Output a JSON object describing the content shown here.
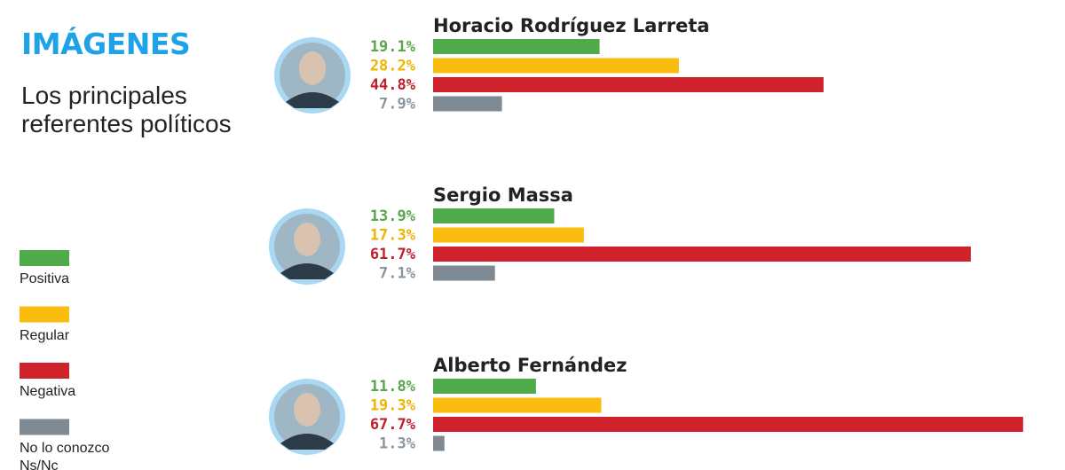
{
  "chart_data": {
    "type": "bar",
    "title": "IMÁGENES",
    "subtitle": "Los principales referentes políticos",
    "categories": [
      "Horacio Rodríguez Larreta",
      "Sergio Massa",
      "Alberto Fernández"
    ],
    "series": [
      {
        "name": "Positiva",
        "color": "#4fab4a",
        "label_color": "#5aa64a",
        "values": [
          19.1,
          13.9,
          11.8
        ],
        "value_labels": [
          "19.1%",
          "13.9%",
          "11.8%"
        ]
      },
      {
        "name": "Regular",
        "color": "#fbbd0d",
        "label_color": "#efb300",
        "values": [
          28.2,
          17.3,
          19.3
        ],
        "value_labels": [
          "28.2%",
          "17.3%",
          "19.3%"
        ]
      },
      {
        "name": "Negativa",
        "color": "#d0222b",
        "label_color": "#c0202a",
        "values": [
          44.8,
          61.7,
          67.7
        ],
        "value_labels": [
          "44.8%",
          "61.7%",
          "67.7%"
        ]
      },
      {
        "name": "No lo conozco Ns/Nc",
        "color": "#7e8a94",
        "label_color": "#8a959d",
        "values": [
          7.9,
          7.1,
          1.3
        ],
        "value_labels": [
          "7.9%",
          "7.1%",
          "1.3%"
        ]
      }
    ]
  }
}
